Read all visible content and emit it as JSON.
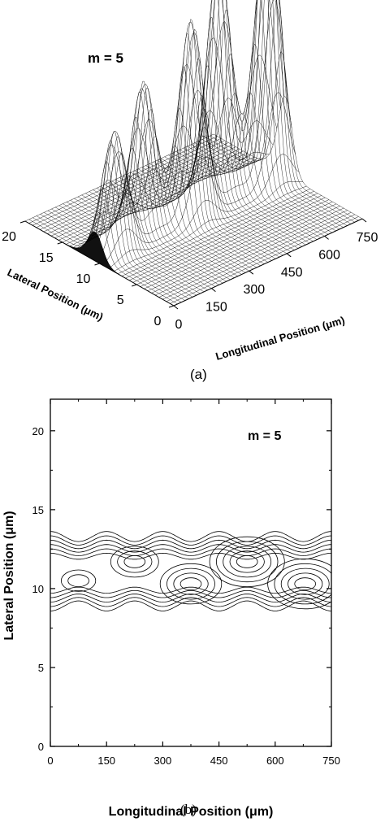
{
  "chart_data": [
    {
      "panel": "(a)",
      "type": "surface",
      "annotation": "m = 5",
      "xlabel": "Longitudinal Position (μm)",
      "ylabel": "Lateral Position (μm)",
      "x_ticks": [
        "0",
        "150",
        "300",
        "450",
        "600",
        "750"
      ],
      "y_ticks": [
        "0",
        "5",
        "10",
        "15",
        "20"
      ],
      "xlim": [
        0,
        750
      ],
      "ylim": [
        0,
        20
      ],
      "peaks": [
        {
          "x": 75,
          "y": 10.5,
          "height": 0.42
        },
        {
          "x": 225,
          "y": 11.7,
          "height": 0.52
        },
        {
          "x": 375,
          "y": 10.3,
          "height": 0.7
        },
        {
          "x": 525,
          "y": 11.7,
          "height": 0.82
        },
        {
          "x": 680,
          "y": 10.3,
          "height": 1.0
        }
      ]
    },
    {
      "panel": "(b)",
      "type": "contour",
      "annotation": "m = 5",
      "xlabel": "Longitudinal Position (μm)",
      "ylabel": "Lateral Position (μm)",
      "x_ticks": [
        "0",
        "150",
        "300",
        "450",
        "600",
        "750"
      ],
      "y_ticks": [
        "0",
        "5",
        "10",
        "15",
        "20"
      ],
      "xlim": [
        0,
        750
      ],
      "ylim": [
        0,
        22
      ],
      "band": {
        "lower_edge": 8.6,
        "upper_edge": 13.4
      },
      "peaks": [
        {
          "x": 75,
          "y": 10.5
        },
        {
          "x": 225,
          "y": 11.7
        },
        {
          "x": 375,
          "y": 10.3
        },
        {
          "x": 525,
          "y": 11.7
        },
        {
          "x": 680,
          "y": 10.3
        }
      ]
    }
  ]
}
